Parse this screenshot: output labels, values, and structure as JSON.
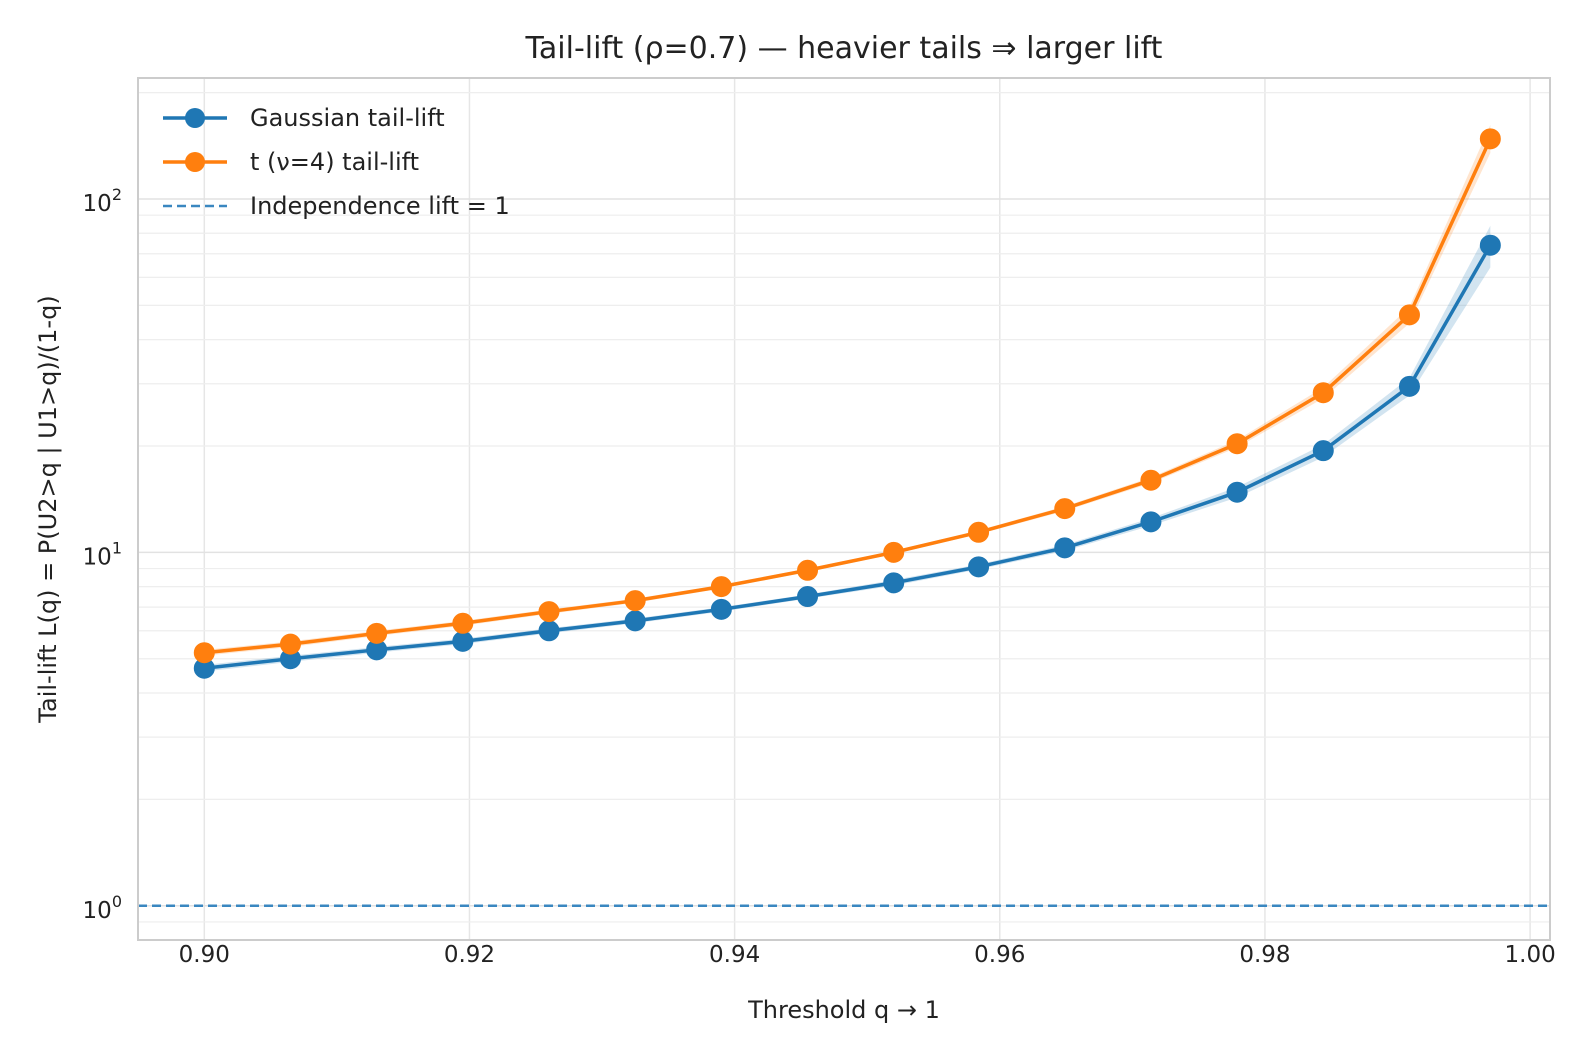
{
  "chart_data": {
    "type": "line",
    "title": "Tail-lift (ρ=0.7) — heavier tails ⇒ larger lift",
    "xlabel": "Threshold q → 1",
    "ylabel": "Tail-lift  L(q) = P(U2>q | U1>q)/(1-q)",
    "yscale": "log",
    "xlim": [
      0.895,
      1.0015
    ],
    "ylim": [
      0.8,
      220
    ],
    "x_ticks": [
      0.9,
      0.92,
      0.94,
      0.96,
      0.98,
      1.0
    ],
    "x_tick_labels": [
      "0.90",
      "0.92",
      "0.94",
      "0.96",
      "0.98",
      "1.00"
    ],
    "y_ticks": [
      {
        "value": 1,
        "base": "10",
        "exp": "0"
      },
      {
        "value": 10,
        "base": "10",
        "exp": "1"
      },
      {
        "value": 100,
        "base": "10",
        "exp": "2"
      }
    ],
    "grid": true,
    "legend_position": "upper-left",
    "x": [
      0.9,
      0.9065,
      0.913,
      0.9195,
      0.926,
      0.9325,
      0.939,
      0.9455,
      0.952,
      0.9584,
      0.9649,
      0.9714,
      0.9779,
      0.9844,
      0.9909,
      0.997
    ],
    "series": [
      {
        "name": "Gaussian tail-lift",
        "color": "#1f77b4",
        "marker": "circle",
        "values": [
          4.7,
          5.0,
          5.3,
          5.6,
          6.0,
          6.4,
          6.9,
          7.5,
          8.2,
          9.1,
          10.3,
          12.2,
          14.8,
          19.4,
          29.5,
          74.0
        ],
        "band_low": [
          4.6,
          4.9,
          5.2,
          5.5,
          5.9,
          6.3,
          6.8,
          7.4,
          8.05,
          8.95,
          10.1,
          11.9,
          14.3,
          18.6,
          27.8,
          64.0
        ],
        "band_high": [
          4.8,
          5.1,
          5.4,
          5.7,
          6.1,
          6.5,
          7.0,
          7.6,
          8.35,
          9.25,
          10.5,
          12.5,
          15.3,
          20.2,
          31.2,
          84.0
        ]
      },
      {
        "name": "t (ν=4) tail-lift",
        "color": "#ff7f0e",
        "marker": "circle",
        "values": [
          5.2,
          5.5,
          5.9,
          6.3,
          6.8,
          7.3,
          8.0,
          8.9,
          10.0,
          11.4,
          13.3,
          16.0,
          20.3,
          28.3,
          47.0,
          148.0
        ],
        "band_low": [
          5.1,
          5.4,
          5.8,
          6.2,
          6.7,
          7.2,
          7.9,
          8.8,
          9.9,
          11.25,
          13.1,
          15.7,
          19.8,
          27.3,
          44.5,
          135.0
        ],
        "band_high": [
          5.3,
          5.6,
          6.0,
          6.4,
          6.9,
          7.4,
          8.1,
          9.0,
          10.1,
          11.55,
          13.5,
          16.3,
          20.8,
          29.3,
          49.5,
          162.0
        ]
      }
    ],
    "reference_line": {
      "name": "Independence lift = 1",
      "value": 1,
      "style": "dashed",
      "color": "#3a87c0"
    }
  }
}
